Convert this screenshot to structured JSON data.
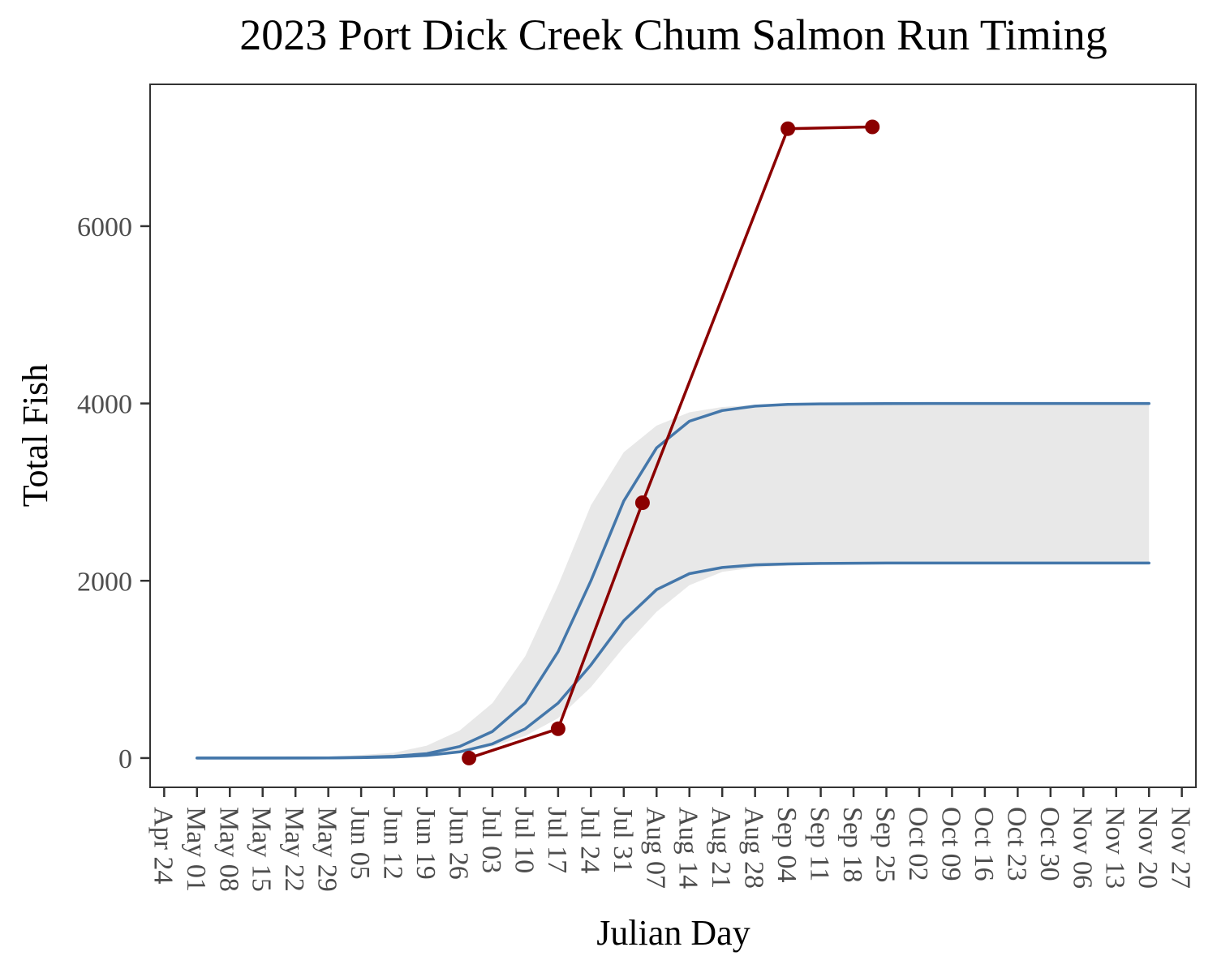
{
  "chart_data": {
    "type": "line",
    "title": "2023 Port Dick Creek Chum Salmon Run Timing",
    "xlabel": "Julian Day",
    "ylabel": "Total Fish",
    "x_axis": {
      "unit": "julian day",
      "range": [
        111,
        334
      ],
      "tick_days": [
        114,
        121,
        128,
        135,
        142,
        149,
        156,
        163,
        170,
        177,
        184,
        191,
        198,
        205,
        212,
        219,
        226,
        233,
        240,
        247,
        254,
        261,
        268,
        275,
        282,
        289,
        296,
        303,
        310,
        317,
        324,
        331
      ],
      "tick_labels": [
        "Apr 24",
        "May 01",
        "May 08",
        "May 15",
        "May 22",
        "May 29",
        "Jun 05",
        "Jun 12",
        "Jun 19",
        "Jun 26",
        "Jul 03",
        "Jul 10",
        "Jul 17",
        "Jul 24",
        "Jul 31",
        "Aug 07",
        "Aug 14",
        "Aug 21",
        "Aug 28",
        "Sep 04",
        "Sep 11",
        "Sep 18",
        "Sep 25",
        "Oct 02",
        "Oct 09",
        "Oct 16",
        "Oct 23",
        "Oct 30",
        "Nov 06",
        "Nov 13",
        "Nov 20",
        "Nov 27"
      ]
    },
    "y_axis": {
      "range": [
        -330,
        7600
      ],
      "ticks": [
        0,
        2000,
        4000,
        6000
      ],
      "tick_labels": [
        "0",
        "2000",
        "4000",
        "6000"
      ]
    },
    "grid": false,
    "legend": "none",
    "band": {
      "color": "#e8e8e8",
      "x": [
        121,
        135,
        149,
        163,
        170,
        177,
        184,
        191,
        198,
        205,
        212,
        219,
        226,
        233,
        240,
        247,
        254,
        268,
        282,
        296,
        310,
        324
      ],
      "lower": [
        0,
        0,
        0,
        10,
        25,
        60,
        130,
        250,
        450,
        800,
        1250,
        1650,
        1950,
        2100,
        2150,
        2170,
        2180,
        2190,
        2195,
        2200,
        2200,
        2200
      ],
      "upper": [
        0,
        0,
        10,
        60,
        140,
        310,
        620,
        1150,
        1950,
        2850,
        3450,
        3750,
        3900,
        3960,
        3985,
        3995,
        3998,
        4000,
        4000,
        4000,
        4000,
        4000
      ]
    },
    "series": [
      {
        "color": "#4477aa",
        "x": [
          121,
          135,
          149,
          156,
          163,
          170,
          177,
          184,
          191,
          198,
          205,
          212,
          219,
          226,
          233,
          240,
          247,
          254,
          268,
          282,
          296,
          310,
          324
        ],
        "values": [
          0,
          0,
          2,
          8,
          20,
          50,
          130,
          300,
          620,
          1200,
          2000,
          2900,
          3500,
          3800,
          3920,
          3970,
          3990,
          3995,
          3998,
          4000,
          4000,
          4000,
          4000
        ]
      },
      {
        "color": "#4477aa",
        "x": [
          121,
          135,
          149,
          156,
          163,
          170,
          177,
          184,
          191,
          198,
          205,
          212,
          219,
          226,
          233,
          240,
          247,
          254,
          268,
          282,
          296,
          310,
          324
        ],
        "values": [
          0,
          0,
          1,
          5,
          12,
          30,
          70,
          160,
          330,
          620,
          1050,
          1550,
          1900,
          2080,
          2150,
          2180,
          2190,
          2195,
          2200,
          2200,
          2200,
          2200,
          2200
        ]
      },
      {
        "color": "#8b0000",
        "markers": true,
        "x": [
          179,
          198,
          216,
          247,
          265
        ],
        "values": [
          0,
          330,
          2880,
          7100,
          7120
        ]
      }
    ]
  }
}
